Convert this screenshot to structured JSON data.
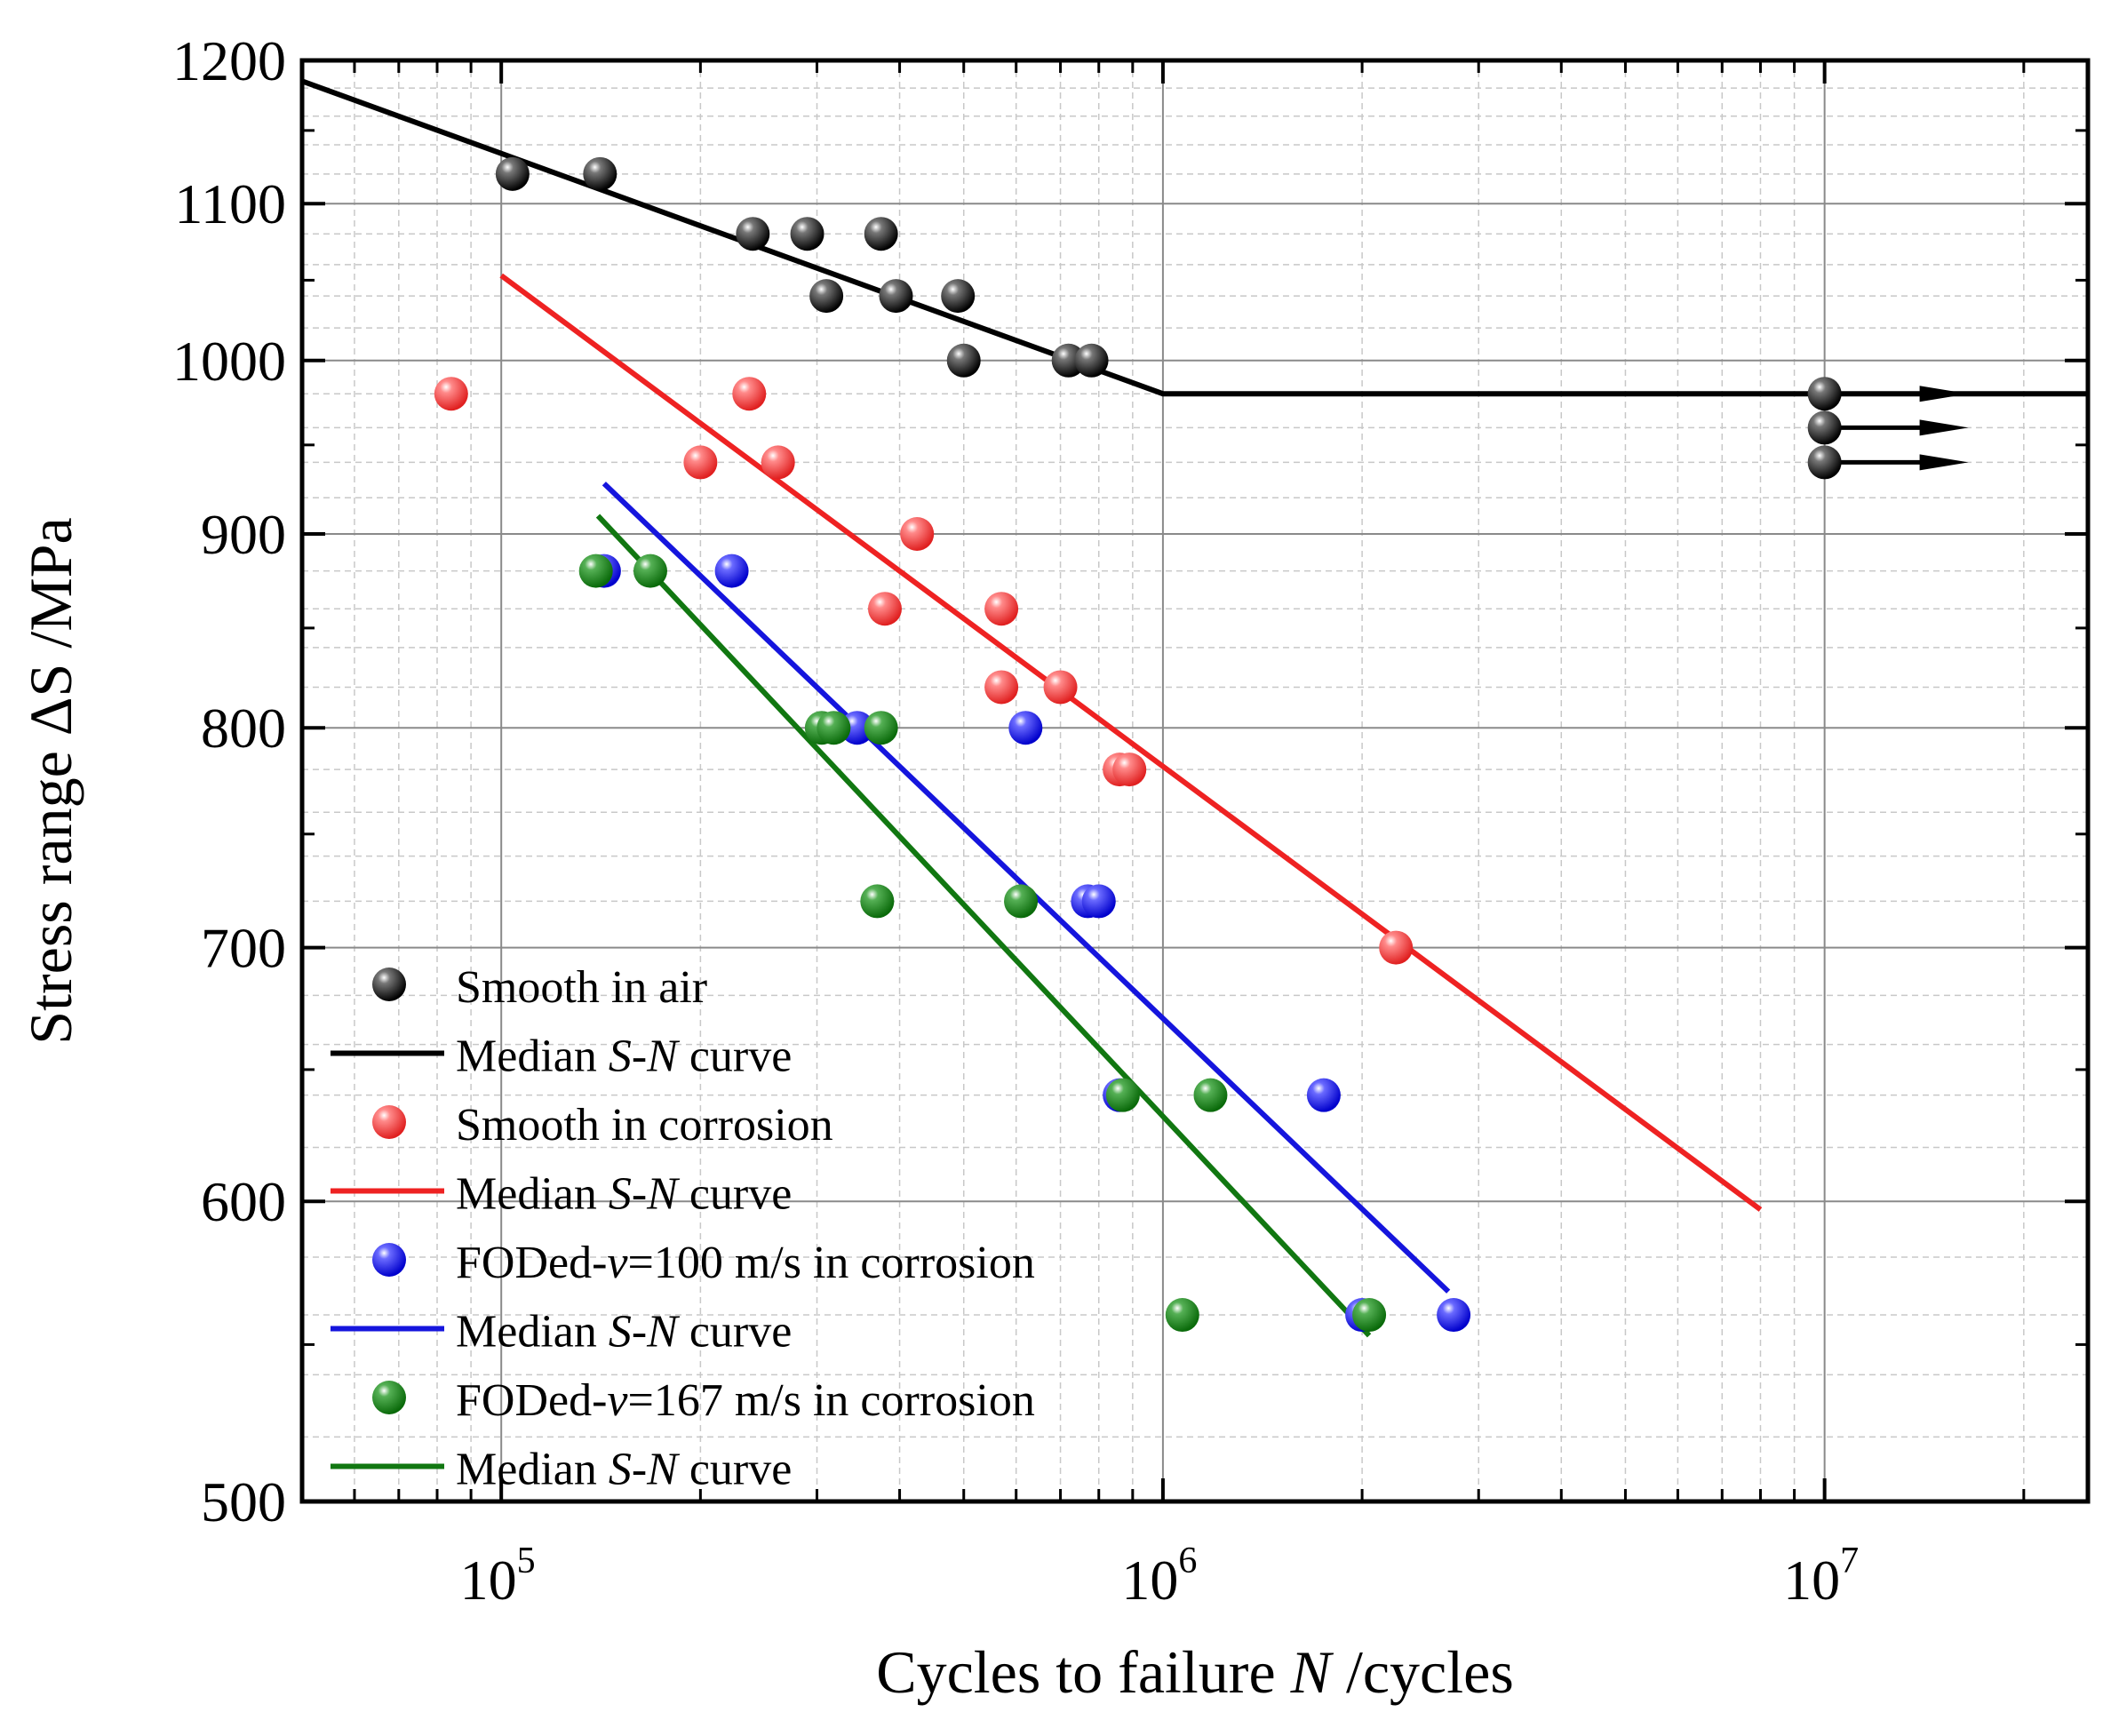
{
  "chart_data": {
    "type": "scatter",
    "title": "",
    "xlabel_prefix": "Cycles to failure ",
    "xlabel_var": "N",
    "xlabel_suffix": " /cycles",
    "ylabel": "Stress range ΔS /MPa",
    "x_scale": "log",
    "y_scale": "log",
    "xlim": [
      50000,
      25000000
    ],
    "ylim": [
      500,
      1200
    ],
    "x_ticks": [
      {
        "value": 100000,
        "base": "10",
        "exp": "5"
      },
      {
        "value": 1000000,
        "base": "10",
        "exp": "6"
      },
      {
        "value": 10000000,
        "base": "10",
        "exp": "7"
      }
    ],
    "y_ticks": [
      {
        "value": 500,
        "label": "500"
      },
      {
        "value": 600,
        "label": "600"
      },
      {
        "value": 700,
        "label": "700"
      },
      {
        "value": 800,
        "label": "800"
      },
      {
        "value": 900,
        "label": "900"
      },
      {
        "value": 1000,
        "label": "1000"
      },
      {
        "value": 1100,
        "label": "1100"
      },
      {
        "value": 1200,
        "label": "1200"
      }
    ],
    "grid": true,
    "legend_position": "bottom-left",
    "series": [
      {
        "name": "Smooth in air",
        "color": "#111111",
        "points": [
          [
            104000,
            1120
          ],
          [
            141000,
            1120
          ],
          [
            240000,
            1080
          ],
          [
            290000,
            1080
          ],
          [
            375000,
            1080
          ],
          [
            310000,
            1040
          ],
          [
            395000,
            1040
          ],
          [
            490000,
            1040
          ],
          [
            500000,
            1000
          ],
          [
            720000,
            1000
          ],
          [
            780000,
            1000
          ]
        ],
        "runouts": [
          [
            10000000,
            980
          ],
          [
            10000000,
            960
          ],
          [
            10000000,
            940
          ]
        ]
      },
      {
        "name": " Smooth in corrosion",
        "color": "#ee3333",
        "points": [
          [
            84000,
            980
          ],
          [
            237000,
            980
          ],
          [
            200000,
            940
          ],
          [
            262000,
            940
          ],
          [
            425000,
            900
          ],
          [
            380000,
            860
          ],
          [
            570000,
            860
          ],
          [
            570000,
            820
          ],
          [
            700000,
            820
          ],
          [
            860000,
            780
          ],
          [
            890000,
            780
          ],
          [
            2250000,
            700
          ]
        ]
      },
      {
        "name": " FODed-",
        "name_var": "v",
        "name_suffix": "=100 m/s in corrosion",
        "color": "#1a1aee",
        "points": [
          [
            143000,
            880
          ],
          [
            223000,
            880
          ],
          [
            345000,
            800
          ],
          [
            620000,
            800
          ],
          [
            770000,
            720
          ],
          [
            800000,
            720
          ],
          [
            860000,
            640
          ],
          [
            1750000,
            640
          ],
          [
            2000000,
            560
          ],
          [
            2750000,
            560
          ]
        ]
      },
      {
        "name": "FODed-",
        "name_var": "v",
        "name_suffix": "=167 m/s in corrosion",
        "color": "#1a8a1a",
        "points": [
          [
            139000,
            880
          ],
          [
            168000,
            880
          ],
          [
            305000,
            800
          ],
          [
            318000,
            800
          ],
          [
            375000,
            800
          ],
          [
            370000,
            720
          ],
          [
            610000,
            720
          ],
          [
            870000,
            640
          ],
          [
            1180000,
            640
          ],
          [
            1070000,
            560
          ],
          [
            2050000,
            560
          ]
        ]
      }
    ],
    "fit_lines": [
      {
        "name": "Median ",
        "var": "S-N",
        "suffix": " curve",
        "color": "#000000",
        "points": [
          [
            50000,
            1185
          ],
          [
            1000000,
            980
          ],
          [
            25000000,
            980
          ]
        ]
      },
      {
        "name": "Median ",
        "var": "S-N",
        "suffix": " curve",
        "color": "#ee2222",
        "points": [
          [
            100000,
            1053
          ],
          [
            8000000,
            597
          ]
        ]
      },
      {
        "name": "Median ",
        "var": "S-N",
        "suffix": " curve",
        "color": "#1515dd",
        "points": [
          [
            143000,
            928
          ],
          [
            2700000,
            568
          ]
        ]
      },
      {
        "name": "Median ",
        "var": "S-N",
        "suffix": " curve",
        "color": "#117711",
        "points": [
          [
            140000,
            910
          ],
          [
            2050000,
            553
          ]
        ]
      }
    ]
  }
}
